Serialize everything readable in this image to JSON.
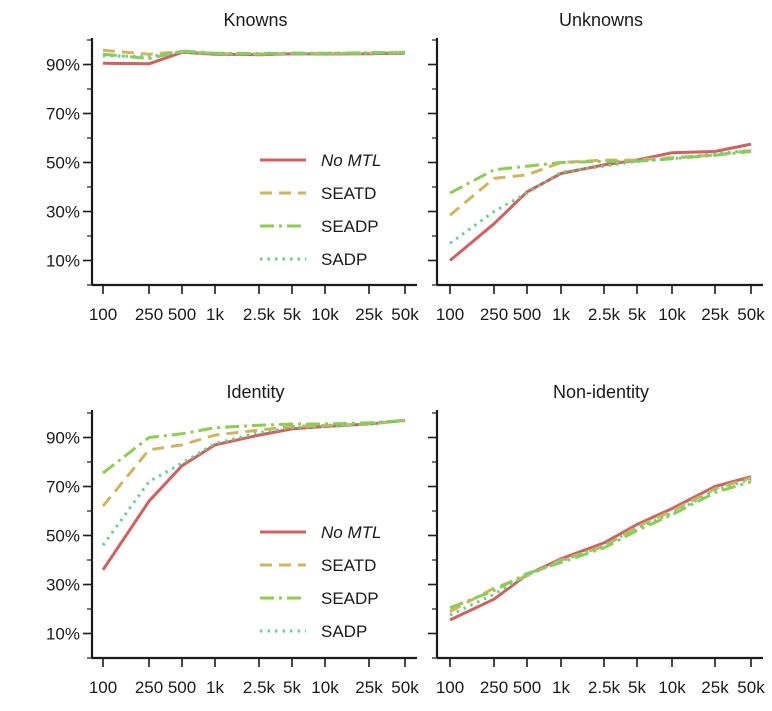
{
  "series_styles": [
    {
      "name": "No MTL",
      "color": "#d35f5f",
      "dash": "",
      "italic": true
    },
    {
      "name": "SEATD",
      "color": "#d4b45a",
      "dash": "12,7",
      "italic": false
    },
    {
      "name": "SEADP",
      "color": "#8ccf4e",
      "dash": "14,5,3,5",
      "italic": false
    },
    {
      "name": "SADP",
      "color": "#5fd48c",
      "dash": "2.5,5",
      "italic": false
    }
  ],
  "chart_data": [
    {
      "type": "line",
      "title": "Knowns",
      "x": [
        "100",
        "250",
        "500",
        "1k",
        "2.5k",
        "5k",
        "10k",
        "25k",
        "50k"
      ],
      "y_ticks": [
        "10%",
        "30%",
        "50%",
        "70%",
        "90%"
      ],
      "ylim": [
        0,
        100
      ],
      "legend": "bottom-right",
      "series": [
        {
          "name": "No MTL",
          "values": [
            90.5,
            90.3,
            95.0,
            94.2,
            94.0,
            94.4,
            94.3,
            94.4,
            94.6
          ]
        },
        {
          "name": "SEATD",
          "values": [
            95.8,
            94.2,
            95.3,
            94.5,
            94.2,
            94.6,
            94.5,
            94.7,
            94.9
          ]
        },
        {
          "name": "SEADP",
          "values": [
            94.2,
            92.4,
            95.5,
            94.6,
            94.5,
            94.7,
            94.6,
            94.8,
            95.0
          ]
        },
        {
          "name": "SADP",
          "values": [
            93.6,
            93.2,
            95.2,
            94.4,
            94.3,
            94.5,
            94.4,
            94.6,
            94.8
          ]
        }
      ]
    },
    {
      "type": "line",
      "title": "Unknowns",
      "x": [
        "100",
        "250",
        "500",
        "1k",
        "2.5k",
        "5k",
        "10k",
        "25k",
        "50k"
      ],
      "ylim": [
        0,
        100
      ],
      "series": [
        {
          "name": "No MTL",
          "values": [
            10.0,
            25.0,
            38.0,
            45.5,
            49.0,
            51.0,
            54.0,
            54.5,
            57.5
          ]
        },
        {
          "name": "SEATD",
          "values": [
            28.5,
            43.5,
            45.0,
            50.0,
            51.0,
            51.0,
            52.0,
            53.0,
            55.0
          ]
        },
        {
          "name": "SEADP",
          "values": [
            37.5,
            47.0,
            48.5,
            50.0,
            50.5,
            50.5,
            51.5,
            53.0,
            54.5
          ]
        },
        {
          "name": "SADP",
          "values": [
            17.0,
            30.0,
            37.5,
            46.0,
            48.5,
            50.5,
            51.5,
            53.5,
            55.0
          ]
        }
      ]
    },
    {
      "type": "line",
      "title": "Identity",
      "x": [
        "100",
        "250",
        "500",
        "1k",
        "2.5k",
        "5k",
        "10k",
        "25k",
        "50k"
      ],
      "y_ticks": [
        "10%",
        "30%",
        "50%",
        "70%",
        "90%"
      ],
      "ylim": [
        0,
        100
      ],
      "legend": "bottom-right",
      "series": [
        {
          "name": "No MTL",
          "values": [
            36.0,
            64.0,
            78.5,
            87.0,
            91.0,
            93.5,
            94.5,
            95.5,
            97.0
          ]
        },
        {
          "name": "SEATD",
          "values": [
            62.0,
            85.0,
            87.0,
            91.0,
            93.0,
            94.5,
            95.0,
            95.5,
            97.0
          ]
        },
        {
          "name": "SEADP",
          "values": [
            75.5,
            90.0,
            91.5,
            94.0,
            95.0,
            95.5,
            95.5,
            96.0,
            97.0
          ]
        },
        {
          "name": "SADP",
          "values": [
            46.0,
            72.0,
            79.5,
            87.5,
            92.0,
            94.0,
            94.5,
            95.5,
            97.0
          ]
        }
      ]
    },
    {
      "type": "line",
      "title": "Non-identity",
      "x": [
        "100",
        "250",
        "500",
        "1k",
        "2.5k",
        "5k",
        "10k",
        "25k",
        "50k"
      ],
      "ylim": [
        0,
        100
      ],
      "series": [
        {
          "name": "No MTL",
          "values": [
            15.5,
            24.0,
            34.0,
            40.5,
            47.0,
            54.5,
            61.0,
            70.0,
            74.0
          ]
        },
        {
          "name": "SEATD",
          "values": [
            19.0,
            28.5,
            33.5,
            40.0,
            45.5,
            53.5,
            60.0,
            69.0,
            73.5
          ]
        },
        {
          "name": "SEADP",
          "values": [
            20.5,
            27.5,
            34.5,
            39.0,
            45.0,
            52.0,
            58.5,
            67.5,
            72.0
          ]
        },
        {
          "name": "SADP",
          "values": [
            17.5,
            26.0,
            34.0,
            39.5,
            46.0,
            53.0,
            59.0,
            68.5,
            73.0
          ]
        }
      ]
    }
  ]
}
